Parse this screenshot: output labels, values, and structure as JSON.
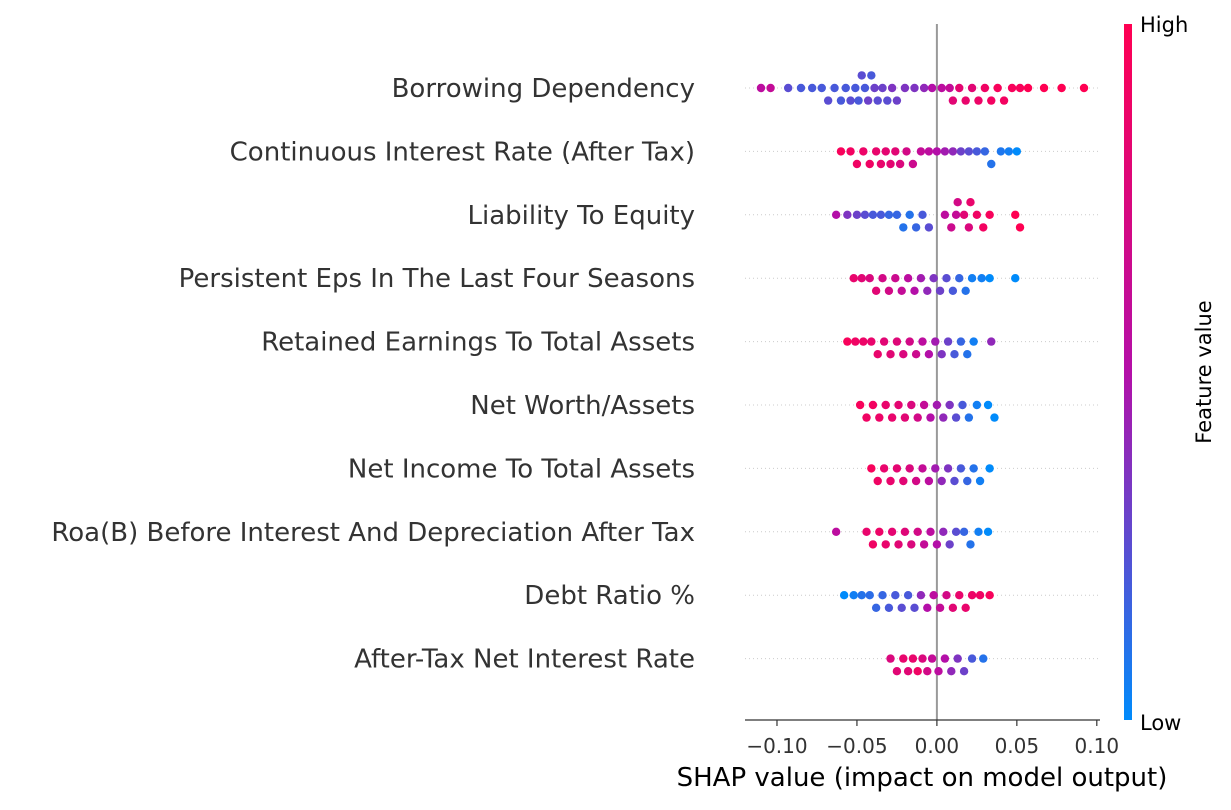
{
  "chart_data": {
    "type": "scatter",
    "subtype": "shap-beeswarm",
    "title": "",
    "xlabel": "SHAP value (impact on model output)",
    "xlim": [
      -0.12,
      0.102
    ],
    "xticks": [
      -0.1,
      -0.05,
      0.0,
      0.05,
      0.1
    ],
    "xtick_labels": [
      "−0.10",
      "−0.05",
      "0.00",
      "0.05",
      "0.10"
    ],
    "zero_line": true,
    "colorbar": {
      "label": "Feature value",
      "high_label": "High",
      "low_label": "Low",
      "low_color": "#008bfb",
      "high_color": "#ff0052"
    },
    "features": [
      "Borrowing Dependency",
      "Continuous Interest Rate (After Tax)",
      "Liability To Equity",
      "Persistent Eps In The Last Four Seasons",
      "Retained Earnings To Total Assets",
      "Net Worth/Assets",
      "Net Income To Total Assets",
      "Roa(B) Before Interest And Depreciation After Tax",
      "Debt Ratio %",
      "After-Tax Net Interest Rate"
    ],
    "series": [
      {
        "points": [
          [
            -0.11,
            0.55
          ],
          [
            -0.104,
            0.6
          ],
          [
            -0.093,
            0.25
          ],
          [
            -0.085,
            0.2
          ],
          [
            -0.078,
            0.2
          ],
          [
            -0.072,
            0.2
          ],
          [
            -0.068,
            0.25
          ],
          [
            -0.064,
            0.2
          ],
          [
            -0.06,
            0.2
          ],
          [
            -0.057,
            0.2
          ],
          [
            -0.054,
            0.25
          ],
          [
            -0.051,
            0.2
          ],
          [
            -0.049,
            0.2
          ],
          [
            -0.047,
            0.25
          ],
          [
            -0.045,
            0.2
          ],
          [
            -0.043,
            0.3
          ],
          [
            -0.041,
            0.2
          ],
          [
            -0.039,
            0.3
          ],
          [
            -0.037,
            0.25
          ],
          [
            -0.034,
            0.3
          ],
          [
            -0.031,
            0.25
          ],
          [
            -0.028,
            0.35
          ],
          [
            -0.025,
            0.3
          ],
          [
            -0.02,
            0.35
          ],
          [
            -0.014,
            0.35
          ],
          [
            -0.008,
            0.4
          ],
          [
            0.01,
            0.8
          ],
          [
            0.014,
            0.82
          ],
          [
            0.018,
            0.85
          ],
          [
            0.022,
            0.8
          ],
          [
            0.026,
            0.88
          ],
          [
            0.03,
            0.9
          ],
          [
            0.034,
            0.92
          ],
          [
            0.038,
            0.95
          ],
          [
            0.042,
            0.92
          ],
          [
            0.047,
            0.95
          ],
          [
            0.052,
            0.95
          ],
          [
            0.057,
            1.0
          ],
          [
            0.067,
            1.0
          ],
          [
            0.078,
            1.0
          ],
          [
            0.092,
            1.0
          ],
          [
            0.003,
            0.55
          ],
          [
            0.008,
            0.6
          ],
          [
            -0.003,
            0.5
          ]
        ]
      },
      {
        "points": [
          [
            -0.06,
            0.95
          ],
          [
            -0.054,
            0.92
          ],
          [
            -0.05,
            0.9
          ],
          [
            -0.046,
            0.88
          ],
          [
            -0.042,
            0.9
          ],
          [
            -0.038,
            0.85
          ],
          [
            -0.035,
            0.85
          ],
          [
            -0.032,
            0.82
          ],
          [
            -0.029,
            0.82
          ],
          [
            -0.026,
            0.8
          ],
          [
            -0.023,
            0.75
          ],
          [
            -0.019,
            0.7
          ],
          [
            -0.015,
            0.65
          ],
          [
            -0.01,
            0.6
          ],
          [
            -0.005,
            0.55
          ],
          [
            0.0,
            0.5
          ],
          [
            0.005,
            0.45
          ],
          [
            0.01,
            0.4
          ],
          [
            0.015,
            0.3
          ],
          [
            0.02,
            0.25
          ],
          [
            0.025,
            0.2
          ],
          [
            0.03,
            0.15
          ],
          [
            0.034,
            0.1
          ],
          [
            0.04,
            0.08
          ],
          [
            0.045,
            0.05
          ],
          [
            0.05,
            0.0
          ]
        ]
      },
      {
        "points": [
          [
            -0.063,
            0.5
          ],
          [
            -0.056,
            0.35
          ],
          [
            -0.05,
            0.3
          ],
          [
            -0.045,
            0.25
          ],
          [
            -0.04,
            0.2
          ],
          [
            -0.035,
            0.2
          ],
          [
            -0.03,
            0.15
          ],
          [
            -0.025,
            0.15
          ],
          [
            -0.021,
            0.1
          ],
          [
            -0.017,
            0.1
          ],
          [
            -0.013,
            0.15
          ],
          [
            -0.009,
            0.2
          ],
          [
            -0.005,
            0.25
          ],
          [
            0.005,
            0.55
          ],
          [
            0.009,
            0.65
          ],
          [
            0.013,
            0.7
          ],
          [
            0.017,
            0.8
          ],
          [
            0.021,
            0.85
          ],
          [
            0.025,
            0.9
          ],
          [
            0.029,
            0.92
          ],
          [
            0.033,
            0.95
          ],
          [
            0.049,
            1.0
          ],
          [
            0.052,
            1.0
          ],
          [
            0.012,
            0.6
          ],
          [
            0.02,
            0.75
          ]
        ]
      },
      {
        "points": [
          [
            -0.052,
            0.85
          ],
          [
            -0.047,
            0.8
          ],
          [
            -0.042,
            0.75
          ],
          [
            -0.038,
            0.8
          ],
          [
            -0.034,
            0.7
          ],
          [
            -0.03,
            0.7
          ],
          [
            -0.026,
            0.65
          ],
          [
            -0.022,
            0.6
          ],
          [
            -0.018,
            0.55
          ],
          [
            -0.014,
            0.5
          ],
          [
            -0.01,
            0.45
          ],
          [
            -0.006,
            0.4
          ],
          [
            -0.002,
            0.35
          ],
          [
            0.002,
            0.3
          ],
          [
            0.006,
            0.25
          ],
          [
            0.01,
            0.2
          ],
          [
            0.014,
            0.15
          ],
          [
            0.018,
            0.1
          ],
          [
            0.022,
            0.05
          ],
          [
            0.028,
            0.05
          ],
          [
            0.033,
            0.0
          ],
          [
            0.049,
            0.0
          ]
        ]
      },
      {
        "points": [
          [
            -0.056,
            0.95
          ],
          [
            -0.051,
            0.9
          ],
          [
            -0.046,
            0.88
          ],
          [
            -0.041,
            0.85
          ],
          [
            -0.037,
            0.85
          ],
          [
            -0.033,
            0.8
          ],
          [
            -0.029,
            0.8
          ],
          [
            -0.025,
            0.78
          ],
          [
            -0.021,
            0.75
          ],
          [
            -0.017,
            0.7
          ],
          [
            -0.013,
            0.65
          ],
          [
            -0.009,
            0.55
          ],
          [
            -0.005,
            0.5
          ],
          [
            -0.001,
            0.45
          ],
          [
            0.003,
            0.35
          ],
          [
            0.007,
            0.3
          ],
          [
            0.011,
            0.2
          ],
          [
            0.015,
            0.15
          ],
          [
            0.019,
            0.1
          ],
          [
            0.023,
            0.05
          ],
          [
            0.034,
            0.4
          ]
        ]
      },
      {
        "points": [
          [
            -0.048,
            0.95
          ],
          [
            -0.044,
            0.9
          ],
          [
            -0.04,
            0.92
          ],
          [
            -0.036,
            0.88
          ],
          [
            -0.032,
            0.85
          ],
          [
            -0.028,
            0.85
          ],
          [
            -0.024,
            0.82
          ],
          [
            -0.02,
            0.8
          ],
          [
            -0.016,
            0.75
          ],
          [
            -0.012,
            0.7
          ],
          [
            -0.008,
            0.6
          ],
          [
            -0.004,
            0.5
          ],
          [
            0.0,
            0.45
          ],
          [
            0.004,
            0.4
          ],
          [
            0.008,
            0.35
          ],
          [
            0.012,
            0.25
          ],
          [
            0.016,
            0.2
          ],
          [
            0.02,
            0.1
          ],
          [
            0.025,
            0.05
          ],
          [
            0.032,
            0.0
          ],
          [
            0.036,
            0.0
          ]
        ]
      },
      {
        "points": [
          [
            -0.041,
            0.95
          ],
          [
            -0.037,
            0.9
          ],
          [
            -0.033,
            0.85
          ],
          [
            -0.029,
            0.85
          ],
          [
            -0.025,
            0.82
          ],
          [
            -0.021,
            0.8
          ],
          [
            -0.017,
            0.75
          ],
          [
            -0.013,
            0.7
          ],
          [
            -0.009,
            0.6
          ],
          [
            -0.005,
            0.55
          ],
          [
            -0.001,
            0.45
          ],
          [
            0.003,
            0.4
          ],
          [
            0.007,
            0.35
          ],
          [
            0.011,
            0.25
          ],
          [
            0.015,
            0.2
          ],
          [
            0.019,
            0.15
          ],
          [
            0.023,
            0.1
          ],
          [
            0.027,
            0.05
          ],
          [
            0.033,
            0.0
          ]
        ]
      },
      {
        "points": [
          [
            -0.063,
            0.55
          ],
          [
            -0.044,
            0.85
          ],
          [
            -0.04,
            0.9
          ],
          [
            -0.036,
            0.88
          ],
          [
            -0.032,
            0.85
          ],
          [
            -0.028,
            0.82
          ],
          [
            -0.024,
            0.8
          ],
          [
            -0.02,
            0.78
          ],
          [
            -0.016,
            0.75
          ],
          [
            -0.012,
            0.7
          ],
          [
            -0.008,
            0.6
          ],
          [
            -0.004,
            0.55
          ],
          [
            0.0,
            0.5
          ],
          [
            0.004,
            0.4
          ],
          [
            0.008,
            0.3
          ],
          [
            0.012,
            0.25
          ],
          [
            0.017,
            0.15
          ],
          [
            0.021,
            0.1
          ],
          [
            0.026,
            0.05
          ],
          [
            0.032,
            0.0
          ]
        ]
      },
      {
        "points": [
          [
            -0.058,
            0.0
          ],
          [
            -0.052,
            0.05
          ],
          [
            -0.047,
            0.1
          ],
          [
            -0.042,
            0.12
          ],
          [
            -0.038,
            0.15
          ],
          [
            -0.034,
            0.15
          ],
          [
            -0.03,
            0.2
          ],
          [
            -0.026,
            0.2
          ],
          [
            -0.022,
            0.25
          ],
          [
            -0.018,
            0.2
          ],
          [
            -0.014,
            0.25
          ],
          [
            -0.01,
            0.4
          ],
          [
            -0.006,
            0.5
          ],
          [
            -0.002,
            0.55
          ],
          [
            0.002,
            0.6
          ],
          [
            0.006,
            0.7
          ],
          [
            0.01,
            0.8
          ],
          [
            0.014,
            0.85
          ],
          [
            0.018,
            0.85
          ],
          [
            0.022,
            0.88
          ],
          [
            0.027,
            0.9
          ],
          [
            0.033,
            0.95
          ]
        ]
      },
      {
        "points": [
          [
            -0.029,
            0.75
          ],
          [
            -0.025,
            0.8
          ],
          [
            -0.021,
            0.85
          ],
          [
            -0.018,
            0.8
          ],
          [
            -0.015,
            0.85
          ],
          [
            -0.012,
            0.9
          ],
          [
            -0.009,
            0.75
          ],
          [
            -0.006,
            0.7
          ],
          [
            -0.003,
            0.6
          ],
          [
            0.001,
            0.55
          ],
          [
            0.005,
            0.5
          ],
          [
            0.009,
            0.4
          ],
          [
            0.013,
            0.35
          ],
          [
            0.017,
            0.3
          ],
          [
            0.022,
            0.2
          ],
          [
            0.029,
            0.1
          ]
        ]
      }
    ]
  }
}
